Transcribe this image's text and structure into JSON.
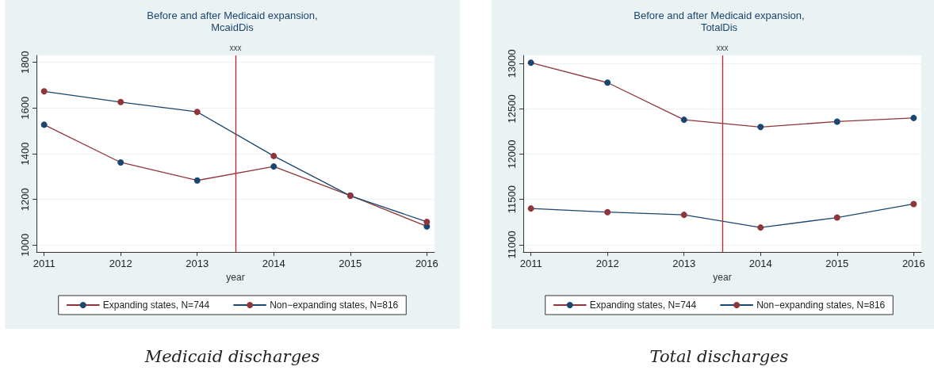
{
  "chart_data": [
    {
      "type": "line",
      "title": "Before and after Medicaid expansion,",
      "subtitle": "McaidDis",
      "xlabel": "year",
      "x": [
        2011,
        2012,
        2013,
        2014,
        2015,
        2016
      ],
      "xlim": [
        2010.9,
        2016.1
      ],
      "xticks": [
        2011,
        2012,
        2013,
        2014,
        2015,
        2016
      ],
      "ylim": [
        970,
        1830
      ],
      "yticks": [
        1000,
        1200,
        1400,
        1600,
        1800
      ],
      "grid": "y",
      "legend": "bottom",
      "marker": "circle",
      "series": [
        {
          "name": "Expanding states, N=744",
          "color": "#90353b",
          "colors": [
            "#1a476f",
            "#1a476f",
            "#1a476f",
            "#1a476f",
            "#1a476f",
            "#1a476f"
          ],
          "values": [
            1527,
            1362,
            1283,
            1344,
            1217,
            1082
          ]
        },
        {
          "name": "Non−expanding states, N=816",
          "color": "#1a476f",
          "colors": [
            "#90353b",
            "#90353b",
            "#90353b",
            "#90353b",
            "#90353b",
            "#90353b"
          ],
          "values": [
            1673,
            1626,
            1583,
            1390,
            1216,
            1102
          ]
        }
      ],
      "ref_lines": [
        {
          "axis": "x",
          "value": 2013.5,
          "label": "xxx",
          "color": "#c8202f"
        }
      ],
      "annotations": [
        "Medicaid discharges"
      ]
    },
    {
      "type": "line",
      "title": "Before and after Medicaid expansion,",
      "subtitle": "TotalDis",
      "xlabel": "year",
      "x": [
        2011,
        2012,
        2013,
        2014,
        2015,
        2016
      ],
      "xlim": [
        2010.9,
        2016.1
      ],
      "xticks": [
        2011,
        2012,
        2013,
        2014,
        2015,
        2016
      ],
      "ylim": [
        10920,
        13090
      ],
      "yticks": [
        11000,
        11500,
        12000,
        12500,
        13000
      ],
      "grid": "y",
      "legend": "bottom",
      "marker": "circle",
      "series": [
        {
          "name": "Expanding states, N=744",
          "color": "#90353b",
          "colors": [
            "#1a476f",
            "#1a476f",
            "#1a476f",
            "#1a476f",
            "#1a476f",
            "#1a476f"
          ],
          "values": [
            13010,
            12790,
            12380,
            12300,
            12360,
            12400
          ]
        },
        {
          "name": "Non−expanding states, N=816",
          "color": "#1a476f",
          "colors": [
            "#90353b",
            "#90353b",
            "#90353b",
            "#90353b",
            "#90353b",
            "#90353b"
          ],
          "values": [
            11400,
            11360,
            11330,
            11190,
            11300,
            11450
          ]
        }
      ],
      "ref_lines": [
        {
          "axis": "x",
          "value": 2013.5,
          "label": "xxx",
          "color": "#c8202f"
        }
      ],
      "annotations": [
        "Total discharges"
      ]
    }
  ]
}
